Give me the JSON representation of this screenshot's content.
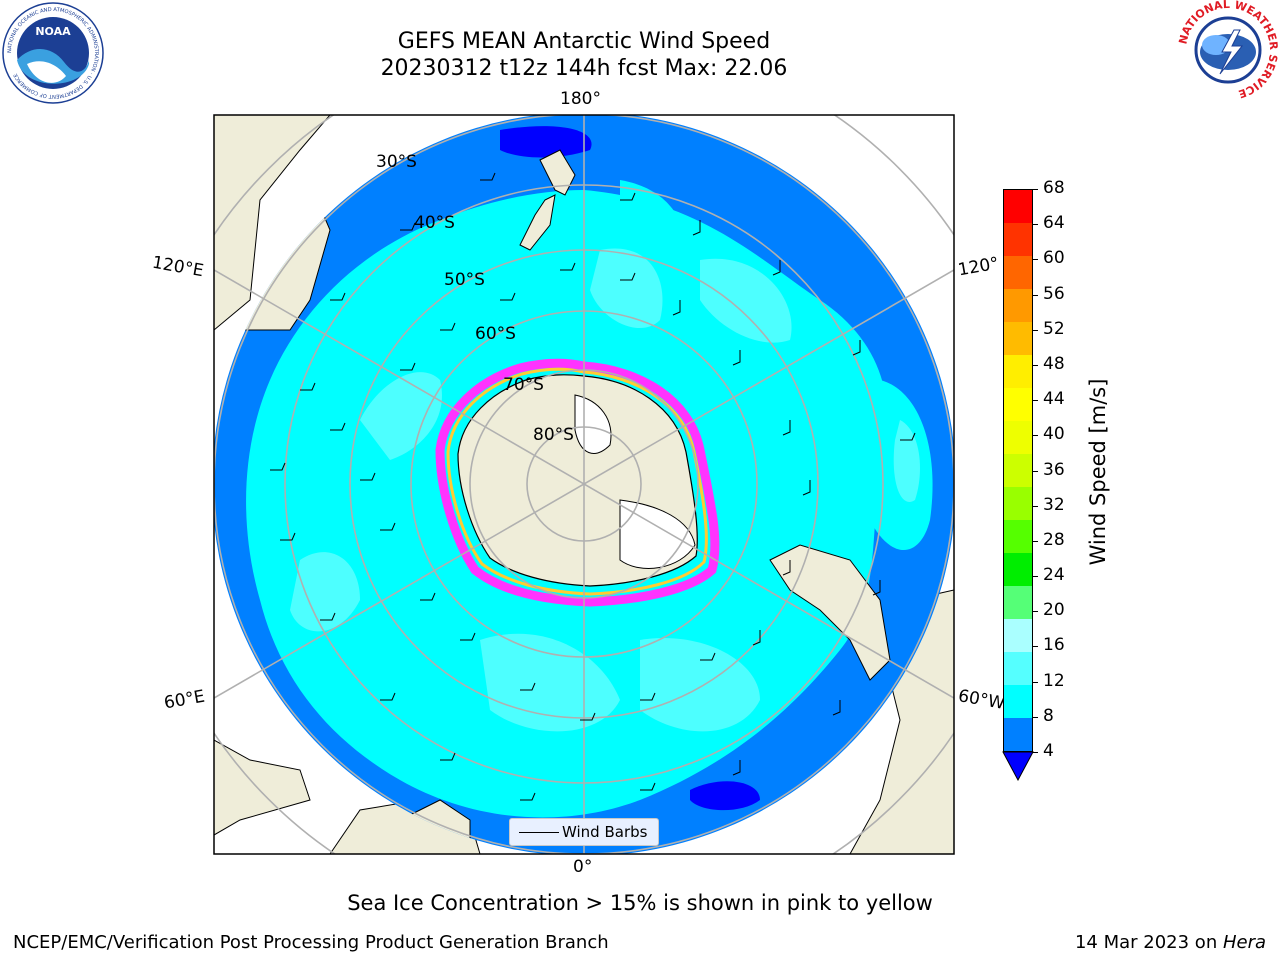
{
  "header": {
    "title_line1": "GEFS MEAN Antarctic Wind Speed",
    "title_line2": "20230312 t12z 144h fcst   Max: 22.06"
  },
  "logos": {
    "left": "NOAA",
    "left_ring_text": "NATIONAL OCEANIC AND ATMOSPHERIC ADMINISTRATION · U.S. DEPARTMENT OF COMMERCE",
    "right_ring_text": "NATIONAL WEATHER SERVICE"
  },
  "map": {
    "lon_labels": {
      "top": "180°",
      "bottom": "0°",
      "left_upper": "120°E",
      "left_lower": "60°E",
      "right_upper": "120°",
      "right_lower": "60°W"
    },
    "lat_labels": [
      "30°S",
      "40°S",
      "50°S",
      "60°S",
      "70°S",
      "80°S"
    ],
    "legend_label": "Wind Barbs",
    "colors": {
      "ocean_low": "#0080ff",
      "ocean_mid": "#00ffff",
      "ocean_high": "#4dffff",
      "land": "#efedd9",
      "ice_pink": "#ff33ff",
      "ice_yellow": "#ffcc33"
    }
  },
  "colorbar": {
    "label": "Wind Speed [m/s]",
    "ticks": [
      "68",
      "64",
      "60",
      "56",
      "52",
      "48",
      "44",
      "40",
      "36",
      "32",
      "28",
      "24",
      "20",
      "16",
      "12",
      "8",
      "4"
    ],
    "colors_top_to_bottom": [
      "#ff0000",
      "#ff3300",
      "#ff6600",
      "#ff9900",
      "#ffbb00",
      "#ffee00",
      "#ffff00",
      "#eeff00",
      "#ccff00",
      "#99ff00",
      "#55ff00",
      "#00ee00",
      "#55ff77",
      "#aaffff",
      "#55ffff",
      "#00ffff",
      "#0080ff"
    ],
    "extend_color": "#0000ff"
  },
  "caption": "Sea Ice Concentration > 15% is shown in pink to yellow",
  "footer": {
    "left": "NCEP/EMC/Verification Post Processing Product Generation Branch",
    "right_prefix": "14 Mar 2023 on ",
    "right_host": "Hera"
  }
}
